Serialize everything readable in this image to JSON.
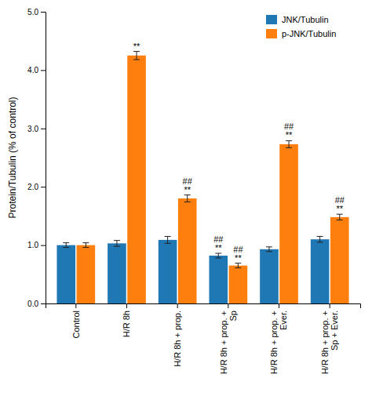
{
  "chart_data": {
    "type": "bar",
    "categories": [
      "Control",
      "H/R 8h",
      "H/R 8h + prop.",
      "H/R 8h + prop. +\nSp",
      "H/R 8h + prop. +\nEver.",
      "H/R 8h + prop. +\nSp + Ever."
    ],
    "series": [
      {
        "name": "JNK/Tubulin",
        "values": [
          1.0,
          1.03,
          1.09,
          0.82,
          0.93,
          1.1
        ],
        "errors": [
          0.04,
          0.05,
          0.06,
          0.04,
          0.04,
          0.05
        ],
        "annotations": [
          null,
          null,
          null,
          [
            "##",
            "**"
          ],
          null,
          null
        ]
      },
      {
        "name": "p-JNK/Tubulin",
        "values": [
          1.0,
          4.25,
          1.8,
          0.65,
          2.73,
          1.48
        ],
        "errors": [
          0.04,
          0.07,
          0.06,
          0.04,
          0.06,
          0.05
        ],
        "annotations": [
          null,
          [
            "**"
          ],
          [
            "##",
            "**"
          ],
          [
            "##",
            "**"
          ],
          [
            "##",
            "**"
          ],
          [
            "##",
            "**"
          ]
        ]
      }
    ],
    "ylabel": "Protein/Tubulin (% of control)",
    "ylim": [
      0.0,
      5.0
    ],
    "yticks": [
      {
        "value": 0.0,
        "label": "0.0"
      },
      {
        "value": 1.0,
        "label": "1.0"
      },
      {
        "value": 2.0,
        "label": "2.0"
      },
      {
        "value": 3.0,
        "label": "3.0"
      },
      {
        "value": 4.0,
        "label": "4.0"
      },
      {
        "value": 5.0,
        "label": "5.0"
      }
    ],
    "grid": false,
    "legend": "upper right"
  }
}
